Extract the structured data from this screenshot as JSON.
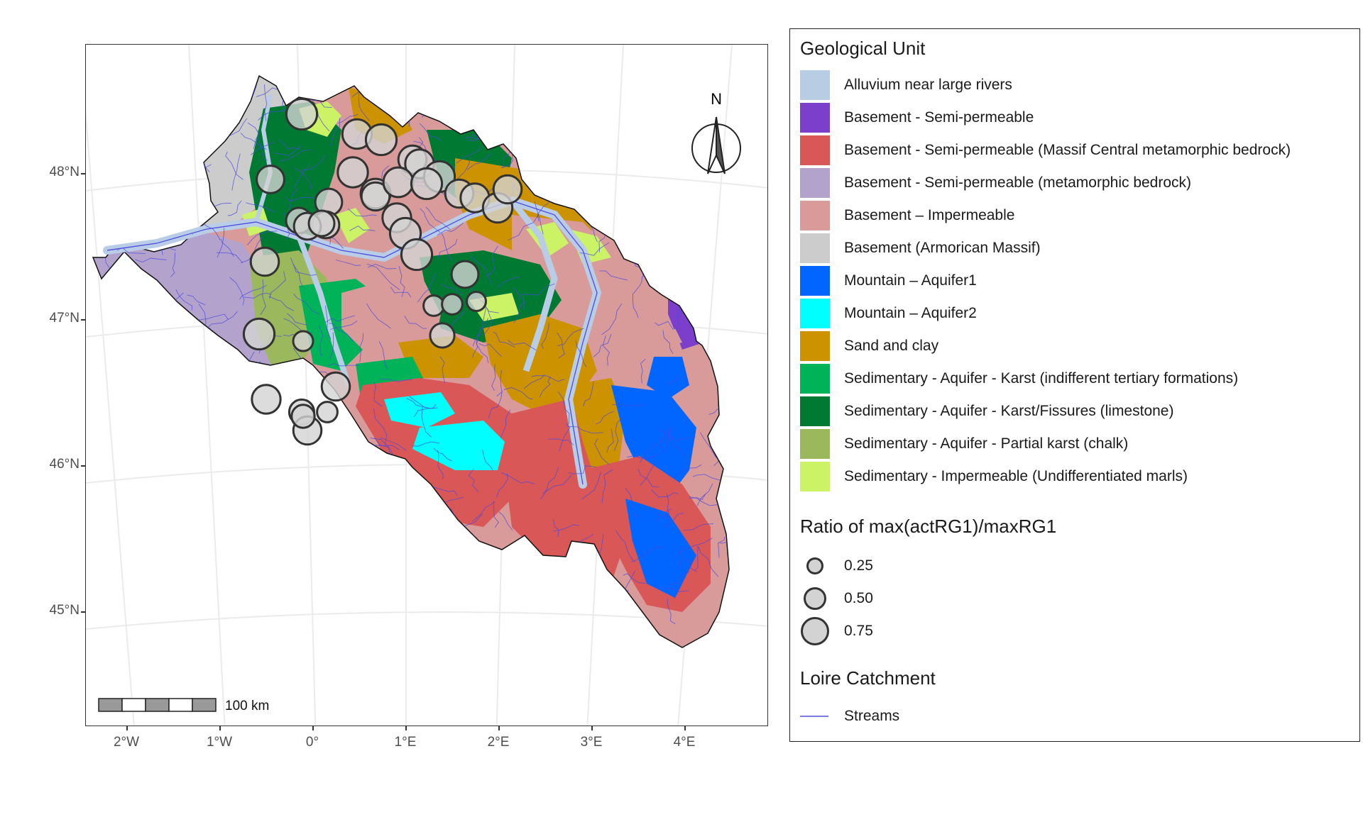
{
  "map": {
    "lat_labels": [
      "48°N",
      "47°N",
      "46°N",
      "45°N"
    ],
    "lon_labels": [
      "2°W",
      "1°W",
      "0°",
      "1°E",
      "2°E",
      "3°E",
      "4°E"
    ],
    "north_arrow_label": "N",
    "scale_bar_label": "100 km",
    "colors": {
      "panel_border": "#333333",
      "graticule": "#ebebeb",
      "catchment_outline": "#111111",
      "streams": "#4848e0",
      "river_corridor": "#b9cde6",
      "station_fill": "#d3d3d3",
      "station_stroke": "#333333"
    }
  },
  "legend": {
    "geology_title": "Geological Unit",
    "geology_items": [
      {
        "label": "Alluvium near large rivers",
        "color": "#b8cce4"
      },
      {
        "label": "Basement - Semi-permeable",
        "color": "#7b3fcb"
      },
      {
        "label": "Basement - Semi-permeable (Massif Central metamorphic bedrock)",
        "color": "#d95757"
      },
      {
        "label": "Basement - Semi-permeable (metamorphic bedrock)",
        "color": "#b3a3cc"
      },
      {
        "label": "Basement – Impermeable",
        "color": "#d99a9a"
      },
      {
        "label": "Basement (Armorican Massif)",
        "color": "#cccccc"
      },
      {
        "label": "Mountain – Aquifer1",
        "color": "#0066ff"
      },
      {
        "label": "Mountain – Aquifer2",
        "color": "#00ffff"
      },
      {
        "label": "Sand and clay",
        "color": "#cc9200"
      },
      {
        "label": "Sedimentary - Aquifer - Karst (indifferent tertiary formations)",
        "color": "#00b359"
      },
      {
        "label": "Sedimentary - Aquifer - Karst/Fissures (limestone)",
        "color": "#007a33"
      },
      {
        "label": "Sedimentary - Aquifer - Partial karst (chalk)",
        "color": "#9cb85c"
      },
      {
        "label": "Sedimentary - Impermeable (Undifferentiated marls)",
        "color": "#ccf266"
      }
    ],
    "ratio_title": "Ratio of max(actRG1)/maxRG1",
    "ratio_items": [
      {
        "label": "0.25",
        "value": 0.25
      },
      {
        "label": "0.50",
        "value": 0.5
      },
      {
        "label": "0.75",
        "value": 0.75
      }
    ],
    "catchment_title": "Loire Catchment",
    "streams_label": "Streams"
  }
}
